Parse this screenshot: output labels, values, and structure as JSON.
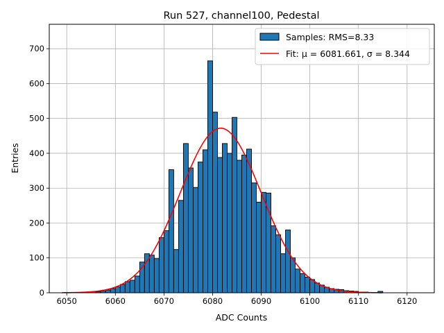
{
  "chart_data": {
    "type": "bar",
    "title": "Run 527, channel100, Pedestal",
    "xlabel": "ADC Counts",
    "ylabel": "Entries",
    "xlim": [
      6046.4,
      6125.6
    ],
    "ylim": [
      0,
      770
    ],
    "xticks": [
      6050,
      6060,
      6070,
      6080,
      6090,
      6100,
      6110,
      6120
    ],
    "yticks": [
      0,
      100,
      200,
      300,
      400,
      500,
      600,
      700
    ],
    "grid": true,
    "legend_position": "top-right",
    "bin_width": 1,
    "bin_starts": [
      6051,
      6052,
      6053,
      6054,
      6055,
      6056,
      6057,
      6058,
      6059,
      6060,
      6061,
      6062,
      6063,
      6064,
      6065,
      6066,
      6067,
      6068,
      6069,
      6070,
      6071,
      6072,
      6073,
      6074,
      6075,
      6076,
      6077,
      6078,
      6079,
      6080,
      6081,
      6082,
      6083,
      6084,
      6085,
      6086,
      6087,
      6088,
      6089,
      6090,
      6091,
      6092,
      6093,
      6094,
      6095,
      6096,
      6097,
      6098,
      6099,
      6100,
      6101,
      6102,
      6103,
      6104,
      6105,
      6106,
      6107,
      6108,
      6109,
      6110,
      6111,
      6112,
      6113,
      6114
    ],
    "counts": [
      1,
      1,
      1,
      2,
      3,
      3,
      5,
      8,
      12,
      17,
      24,
      32,
      36,
      48,
      88,
      112,
      108,
      98,
      158,
      178,
      353,
      124,
      265,
      428,
      358,
      302,
      375,
      410,
      665,
      518,
      388,
      428,
      400,
      503,
      380,
      395,
      412,
      315,
      260,
      288,
      286,
      192,
      166,
      112,
      180,
      100,
      68,
      55,
      45,
      38,
      28,
      22,
      16,
      12,
      10,
      9,
      6,
      5,
      4,
      2,
      2,
      1,
      1,
      4
    ],
    "bar_color": "#1f77b4",
    "fit": {
      "mu": 6081.661,
      "sigma": 8.344,
      "amplitude": 472,
      "x_range": [
        6049,
        6115
      ],
      "color": "#ff0000"
    },
    "legend": [
      {
        "label": "Samples: RMS=8.33",
        "kind": "bar",
        "color": "#1f77b4"
      },
      {
        "label": "Fit: μ = 6081.661, σ = 8.344",
        "kind": "line",
        "color": "#ff0000"
      }
    ]
  }
}
